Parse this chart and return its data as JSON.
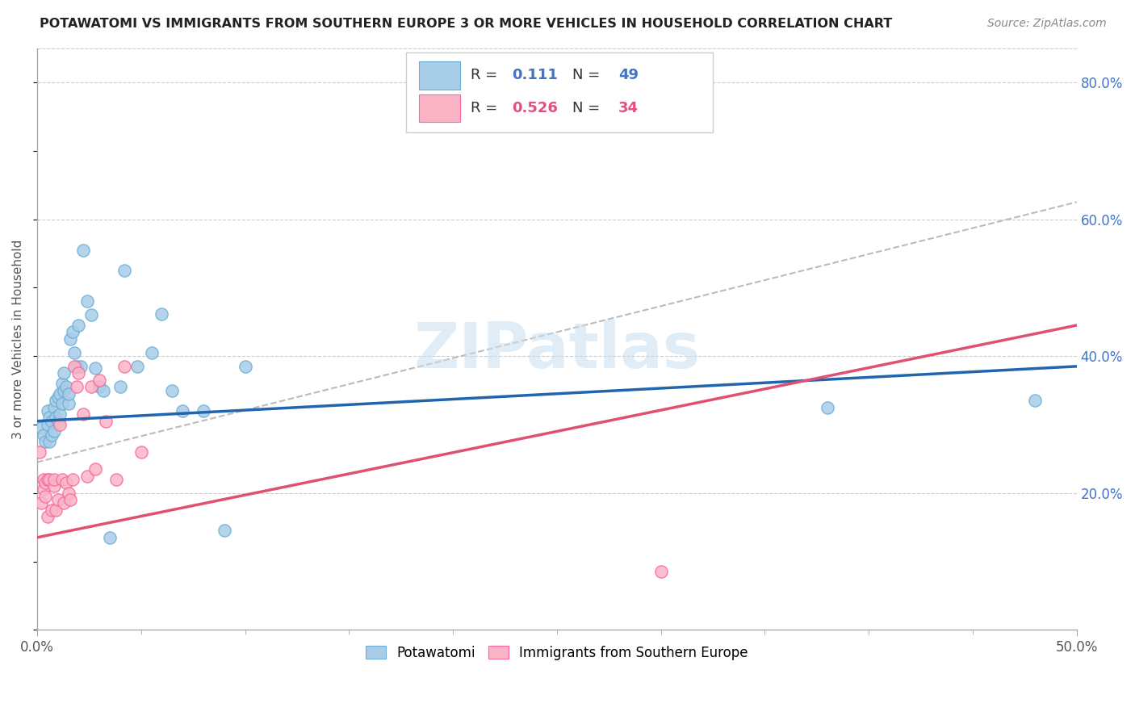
{
  "title": "POTAWATOMI VS IMMIGRANTS FROM SOUTHERN EUROPE 3 OR MORE VEHICLES IN HOUSEHOLD CORRELATION CHART",
  "source": "Source: ZipAtlas.com",
  "ylabel": "3 or more Vehicles in Household",
  "xlim": [
    0.0,
    0.5
  ],
  "ylim": [
    0.0,
    0.85
  ],
  "xtick_major": [
    0.0,
    0.5
  ],
  "xtick_major_labels": [
    "0.0%",
    "50.0%"
  ],
  "xtick_minor": [
    0.05,
    0.1,
    0.15,
    0.2,
    0.25,
    0.3,
    0.35,
    0.4,
    0.45
  ],
  "yticks_right": [
    0.2,
    0.4,
    0.6,
    0.8
  ],
  "ytick_labels_right": [
    "20.0%",
    "40.0%",
    "60.0%",
    "80.0%"
  ],
  "blue_color": "#a8cde8",
  "blue_edge_color": "#6baed6",
  "pink_color": "#fbb4c6",
  "pink_edge_color": "#f768a1",
  "blue_line_color": "#2166ac",
  "pink_line_color": "#e05070",
  "dashed_line_color": "#bbbbbb",
  "legend_label1": "Potawatomi",
  "legend_label2": "Immigrants from Southern Europe",
  "watermark": "ZIPatlas",
  "blue_scatter_x": [
    0.002,
    0.003,
    0.004,
    0.005,
    0.005,
    0.006,
    0.006,
    0.007,
    0.007,
    0.008,
    0.008,
    0.009,
    0.009,
    0.01,
    0.01,
    0.011,
    0.011,
    0.012,
    0.012,
    0.013,
    0.013,
    0.014,
    0.015,
    0.015,
    0.016,
    0.017,
    0.018,
    0.019,
    0.02,
    0.021,
    0.022,
    0.024,
    0.026,
    0.028,
    0.03,
    0.032,
    0.035,
    0.04,
    0.042,
    0.048,
    0.055,
    0.06,
    0.065,
    0.07,
    0.08,
    0.09,
    0.1,
    0.38,
    0.48
  ],
  "blue_scatter_y": [
    0.295,
    0.285,
    0.275,
    0.3,
    0.32,
    0.275,
    0.31,
    0.285,
    0.305,
    0.29,
    0.325,
    0.31,
    0.335,
    0.305,
    0.34,
    0.315,
    0.345,
    0.33,
    0.36,
    0.375,
    0.35,
    0.355,
    0.33,
    0.345,
    0.425,
    0.435,
    0.405,
    0.385,
    0.445,
    0.385,
    0.555,
    0.48,
    0.46,
    0.382,
    0.355,
    0.35,
    0.135,
    0.355,
    0.525,
    0.385,
    0.405,
    0.462,
    0.35,
    0.32,
    0.32,
    0.145,
    0.385,
    0.325,
    0.335
  ],
  "pink_scatter_x": [
    0.001,
    0.002,
    0.003,
    0.003,
    0.004,
    0.004,
    0.005,
    0.005,
    0.006,
    0.007,
    0.008,
    0.008,
    0.009,
    0.01,
    0.011,
    0.012,
    0.013,
    0.014,
    0.015,
    0.016,
    0.017,
    0.018,
    0.019,
    0.02,
    0.022,
    0.024,
    0.026,
    0.028,
    0.03,
    0.033,
    0.038,
    0.042,
    0.05,
    0.3
  ],
  "pink_scatter_y": [
    0.26,
    0.185,
    0.205,
    0.22,
    0.195,
    0.215,
    0.22,
    0.165,
    0.22,
    0.175,
    0.21,
    0.22,
    0.175,
    0.19,
    0.3,
    0.22,
    0.185,
    0.215,
    0.2,
    0.19,
    0.22,
    0.385,
    0.355,
    0.375,
    0.315,
    0.225,
    0.355,
    0.235,
    0.365,
    0.305,
    0.22,
    0.385,
    0.26,
    0.085
  ],
  "blue_line_x0": 0.0,
  "blue_line_x1": 0.5,
  "blue_line_y0": 0.305,
  "blue_line_y1": 0.385,
  "pink_line_x0": 0.0,
  "pink_line_x1": 0.5,
  "pink_line_y0": 0.135,
  "pink_line_y1": 0.445,
  "dashed_line_x0": 0.0,
  "dashed_line_x1": 0.5,
  "dashed_line_y0": 0.245,
  "dashed_line_y1": 0.625
}
